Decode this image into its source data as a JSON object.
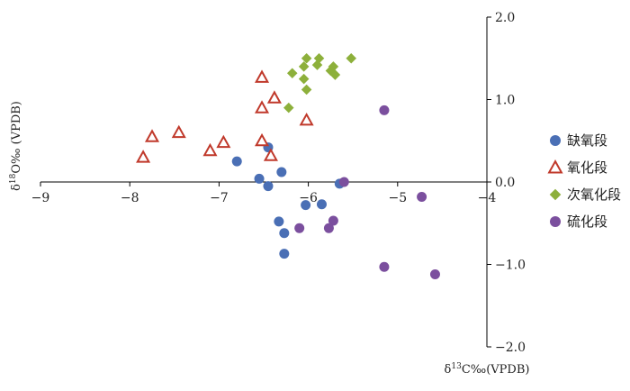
{
  "chart_data": {
    "type": "scatter",
    "title": "",
    "xlabel": "δ13C‰(VPDB)",
    "ylabel": "δ18O‰ (VPDB)",
    "xlim": [
      -9,
      -4
    ],
    "ylim": [
      -2.0,
      2.0
    ],
    "x_ticks": [
      -9,
      -8,
      -7,
      -6,
      -5,
      -4
    ],
    "x_tick_labels": [
      "−9",
      "−8",
      "−7",
      "−6",
      "−5",
      "−4"
    ],
    "y_ticks": [
      -2.0,
      -1.0,
      0.0,
      1.0,
      2.0
    ],
    "y_tick_labels": [
      "−2.0",
      "−1.0",
      "0.0",
      "1.0",
      "2.0"
    ],
    "y_axis_position": "right (at x = -4)",
    "x_axis_position": "at y = 0",
    "grid": false,
    "legend_position": "right",
    "series": [
      {
        "name": "缺氧段",
        "marker": "circle",
        "color": "#4a6fb5",
        "points": [
          [
            -6.8,
            0.25
          ],
          [
            -6.45,
            0.42
          ],
          [
            -6.55,
            0.04
          ],
          [
            -6.45,
            -0.05
          ],
          [
            -6.3,
            0.12
          ],
          [
            -5.65,
            -0.02
          ],
          [
            -6.03,
            -0.28
          ],
          [
            -5.85,
            -0.27
          ],
          [
            -6.33,
            -0.48
          ],
          [
            -6.27,
            -0.62
          ],
          [
            -6.27,
            -0.87
          ]
        ]
      },
      {
        "name": "氧化段",
        "marker": "triangle",
        "color": "#c0392b",
        "points": [
          [
            -7.85,
            0.3
          ],
          [
            -7.75,
            0.55
          ],
          [
            -7.45,
            0.6
          ],
          [
            -7.1,
            0.38
          ],
          [
            -6.95,
            0.48
          ],
          [
            -6.52,
            0.5
          ],
          [
            -6.52,
            0.9
          ],
          [
            -6.38,
            1.02
          ],
          [
            -6.52,
            1.27
          ],
          [
            -6.42,
            0.32
          ],
          [
            -6.02,
            0.75
          ]
        ]
      },
      {
        "name": "次氧化段",
        "marker": "diamond",
        "color": "#8db03b",
        "points": [
          [
            -6.22,
            0.9
          ],
          [
            -6.18,
            1.32
          ],
          [
            -6.05,
            1.4
          ],
          [
            -6.02,
            1.5
          ],
          [
            -6.05,
            1.25
          ],
          [
            -6.02,
            1.12
          ],
          [
            -5.9,
            1.42
          ],
          [
            -5.88,
            1.5
          ],
          [
            -5.75,
            1.35
          ],
          [
            -5.72,
            1.4
          ],
          [
            -5.7,
            1.3
          ],
          [
            -5.52,
            1.5
          ]
        ]
      },
      {
        "name": "硫化段",
        "marker": "circle",
        "color": "#7b4f9e",
        "points": [
          [
            -5.15,
            0.87
          ],
          [
            -5.6,
            0.0
          ],
          [
            -4.73,
            -0.18
          ],
          [
            -6.1,
            -0.56
          ],
          [
            -5.72,
            -0.47
          ],
          [
            -5.77,
            -0.56
          ],
          [
            -5.15,
            -1.03
          ],
          [
            -4.58,
            -1.12
          ]
        ]
      }
    ]
  }
}
